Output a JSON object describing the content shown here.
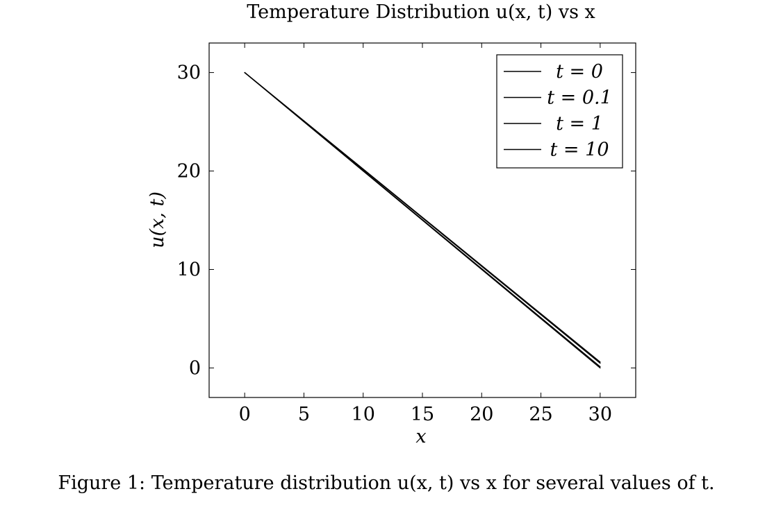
{
  "chart_data": {
    "type": "line",
    "title": "Temperature Distribution u(x, t) vs x",
    "xlabel": "x",
    "ylabel": "u(x, t)",
    "xlim": [
      -3,
      33
    ],
    "ylim": [
      -3,
      33
    ],
    "xticks": [
      0,
      5,
      10,
      15,
      20,
      25,
      30
    ],
    "yticks": [
      0,
      10,
      20,
      30
    ],
    "x": [
      0,
      5,
      10,
      15,
      20,
      25,
      30
    ],
    "series": [
      {
        "name": "t = 0",
        "values": [
          30,
          25,
          20,
          15,
          10,
          5,
          0
        ],
        "color": "#000000"
      },
      {
        "name": "t = 0.1",
        "values": [
          30,
          25.1,
          20.2,
          15.3,
          10.4,
          5.5,
          0.6
        ],
        "color": "#000000"
      },
      {
        "name": "t = 1",
        "values": [
          30,
          25.08,
          20.16,
          15.24,
          10.32,
          5.4,
          0.48
        ],
        "color": "#000000"
      },
      {
        "name": "t = 10",
        "values": [
          30,
          25.02,
          20.04,
          15.06,
          10.08,
          5.1,
          0.12
        ],
        "color": "#000000"
      }
    ],
    "legend_position": "top-right",
    "grid": false
  },
  "figure": {
    "caption": "Figure 1: Temperature distribution u(x, t) vs x for several values of t."
  }
}
